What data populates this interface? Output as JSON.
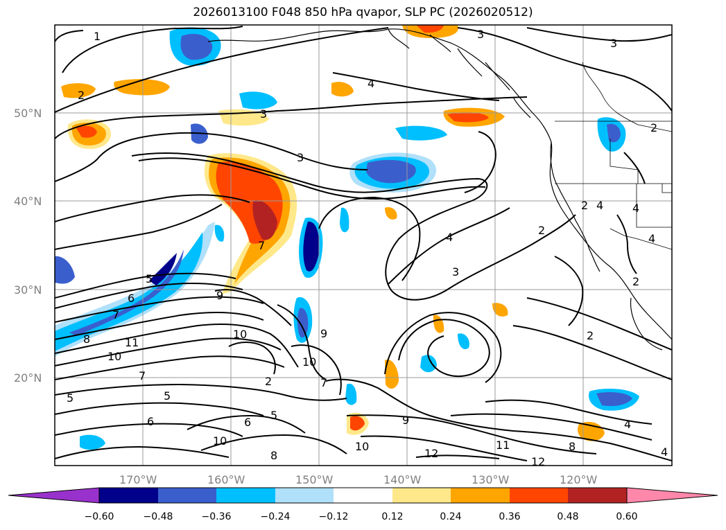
{
  "title": "2026013100 F048 850 hPa qvapor, SLP PC (2026020512)",
  "map": {
    "lon_range": [
      -180,
      -110
    ],
    "lat_range": [
      10,
      60
    ],
    "lon_ticks": [
      {
        "lon": -170,
        "label": "170°W"
      },
      {
        "lon": -160,
        "label": "160°W"
      },
      {
        "lon": -150,
        "label": "150°W"
      },
      {
        "lon": -140,
        "label": "140°W"
      },
      {
        "lon": -130,
        "label": "130°W"
      },
      {
        "lon": -120,
        "label": "120°W"
      }
    ],
    "lat_ticks": [
      {
        "lat": 20,
        "label": "20°N"
      },
      {
        "lat": 30,
        "label": "30°N"
      },
      {
        "lat": 40,
        "label": "40°N"
      },
      {
        "lat": 50,
        "label": "50°N"
      }
    ],
    "grid": true
  },
  "colorbar": {
    "ticks": [
      "−0.60",
      "−0.48",
      "−0.36",
      "−0.24",
      "−0.12",
      "0.12",
      "0.24",
      "0.36",
      "0.48",
      "0.60"
    ],
    "colors": [
      "#9932cc",
      "#00008b",
      "#3a5fcd",
      "#00bfff",
      "#b0e0fa",
      "#ffffff",
      "#ffe88a",
      "#ffa500",
      "#ff4500",
      "#b22222",
      "#ff88aa"
    ],
    "extend": "both"
  },
  "contour_labels": [
    "1",
    "2",
    "3",
    "4",
    "3",
    "3",
    "4",
    "4",
    "3",
    "3",
    "2",
    "2",
    "4",
    "4",
    "2",
    "2",
    "7",
    "5",
    "6",
    "7",
    "8",
    "11",
    "10",
    "9",
    "9",
    "10",
    "10",
    "7",
    "7",
    "5",
    "6",
    "6",
    "5",
    "2",
    "9",
    "10",
    "12",
    "11",
    "12",
    "8",
    "4",
    "10",
    "8",
    "5",
    "2",
    "4"
  ]
}
